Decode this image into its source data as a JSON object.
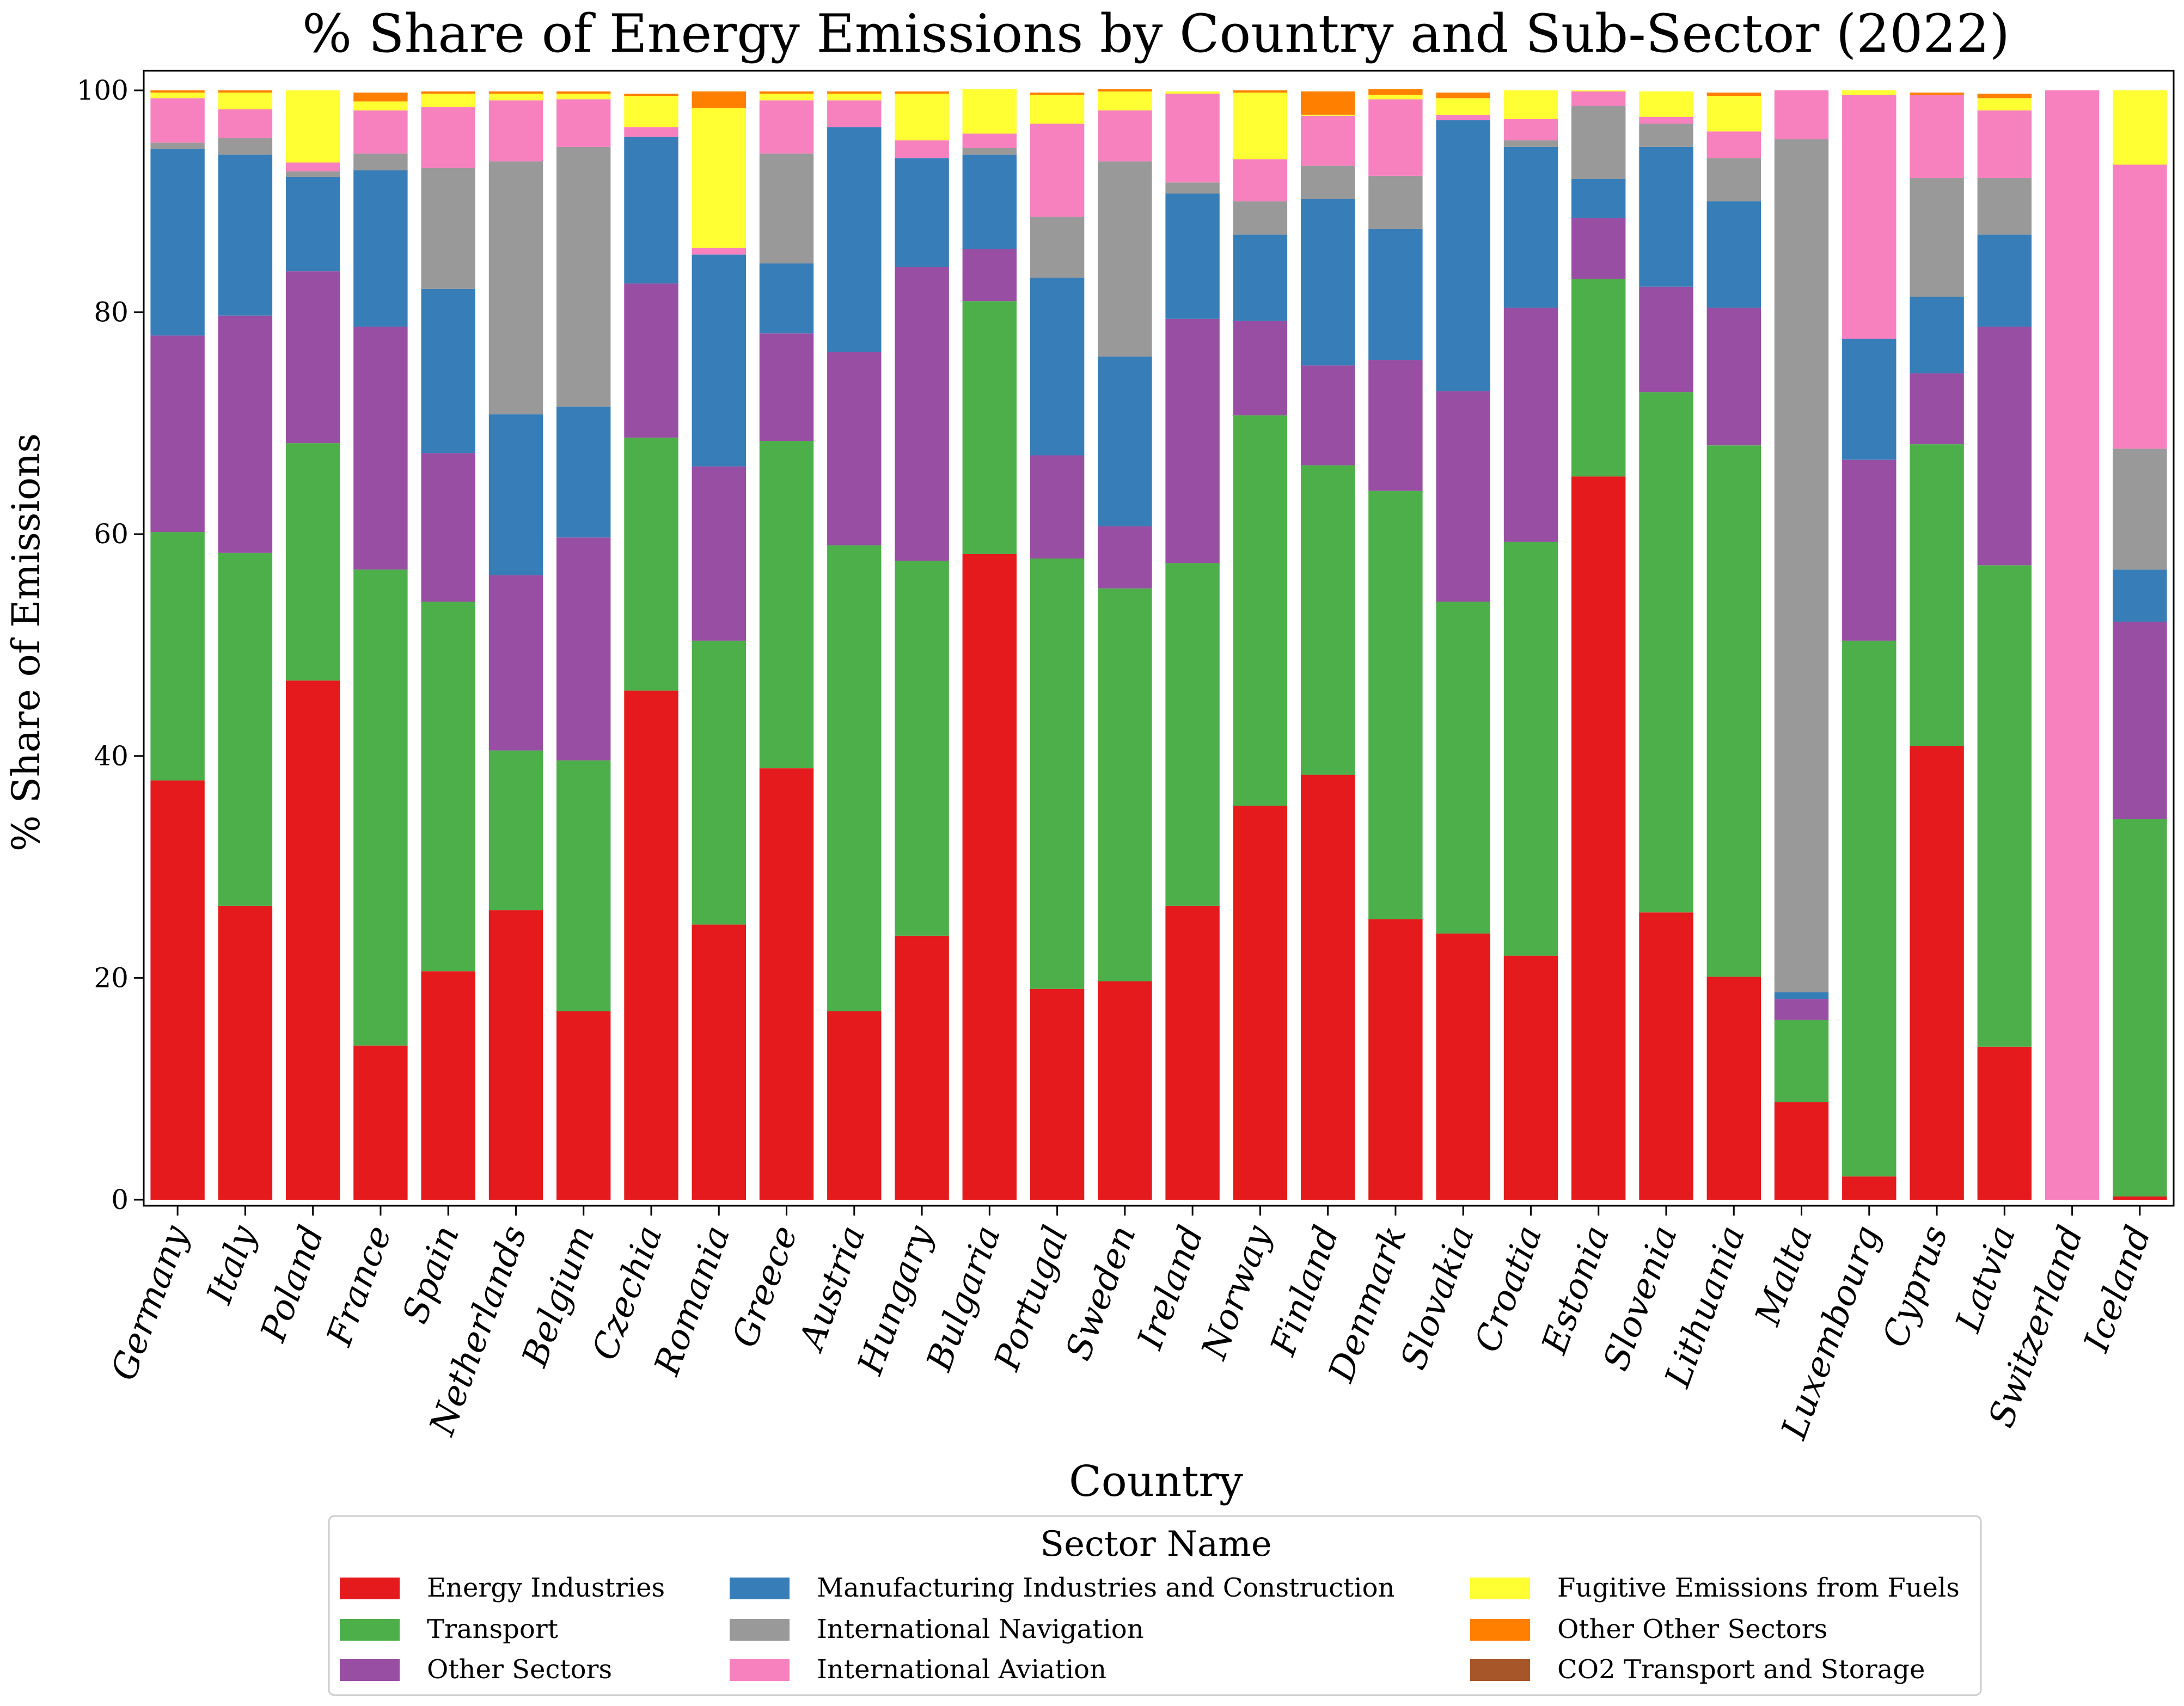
{
  "chart_data": {
    "type": "bar",
    "stacked": true,
    "title": "% Share of Energy Emissions by Country and Sub-Sector (2022)",
    "xlabel": "Country",
    "ylabel": "% Share of Emissions",
    "ylim": [
      0,
      100
    ],
    "yticks": [
      0,
      20,
      40,
      60,
      80,
      100
    ],
    "grid": false,
    "legend_title": "Sector Name",
    "legend_position": "bottom-center",
    "categories": [
      "Germany",
      "Italy",
      "Poland",
      "France",
      "Spain",
      "Netherlands",
      "Belgium",
      "Czechia",
      "Romania",
      "Greece",
      "Austria",
      "Hungary",
      "Bulgaria",
      "Portugal",
      "Sweden",
      "Ireland",
      "Norway",
      "Finland",
      "Denmark",
      "Slovakia",
      "Croatia",
      "Estonia",
      "Slovenia",
      "Lithuania",
      "Malta",
      "Luxembourg",
      "Cyprus",
      "Latvia",
      "Switzerland",
      "Iceland"
    ],
    "series": [
      {
        "name": "Energy Industries",
        "color": "#e41a1c",
        "values": [
          37.8,
          26.5,
          46.8,
          13.9,
          20.6,
          26.1,
          17.0,
          45.9,
          24.8,
          38.9,
          17.0,
          23.8,
          58.2,
          19.0,
          19.7,
          26.5,
          35.5,
          38.3,
          25.3,
          24.0,
          22.0,
          65.2,
          25.9,
          20.1,
          8.8,
          2.1,
          40.9,
          13.8,
          0.0,
          0.3
        ]
      },
      {
        "name": "Transport",
        "color": "#4daf4a",
        "values": [
          22.4,
          31.8,
          21.4,
          42.9,
          33.3,
          14.4,
          22.6,
          22.8,
          25.6,
          29.5,
          42.0,
          33.8,
          22.8,
          38.8,
          35.4,
          30.9,
          35.2,
          27.9,
          38.6,
          29.9,
          37.3,
          17.8,
          46.9,
          47.9,
          7.4,
          48.3,
          27.2,
          43.4,
          0.0,
          34.0
        ]
      },
      {
        "name": "Other Sectors",
        "color": "#984ea3",
        "values": [
          17.7,
          21.4,
          15.5,
          21.9,
          13.4,
          15.8,
          20.1,
          13.9,
          15.7,
          9.7,
          17.4,
          26.5,
          4.7,
          9.3,
          5.6,
          22.0,
          8.5,
          9.0,
          11.8,
          19.0,
          21.1,
          5.5,
          9.5,
          12.4,
          1.9,
          16.3,
          6.4,
          21.5,
          0.0,
          17.8
        ]
      },
      {
        "name": "Manufacturing Industries and Construction",
        "color": "#377eb8",
        "values": [
          16.8,
          14.5,
          8.5,
          14.1,
          14.8,
          14.5,
          11.8,
          13.2,
          19.1,
          6.3,
          20.3,
          9.8,
          8.5,
          16.0,
          15.3,
          11.3,
          7.8,
          15.0,
          11.8,
          24.4,
          14.5,
          3.5,
          12.6,
          9.6,
          0.6,
          10.9,
          6.9,
          8.3,
          0.0,
          4.7
        ]
      },
      {
        "name": "International Navigation",
        "color": "#999999",
        "values": [
          0.6,
          1.5,
          0.5,
          1.5,
          10.9,
          22.8,
          23.4,
          0.0,
          0.0,
          9.9,
          0.0,
          0.0,
          0.6,
          5.5,
          17.6,
          1.0,
          3.0,
          3.0,
          4.8,
          0.0,
          0.6,
          6.6,
          2.1,
          3.9,
          76.9,
          0.0,
          10.7,
          5.1,
          0.0,
          10.9
        ]
      },
      {
        "name": "International Aviation",
        "color": "#f781bf",
        "values": [
          4.0,
          2.6,
          0.8,
          3.9,
          5.5,
          5.5,
          4.3,
          0.9,
          0.6,
          4.8,
          2.4,
          1.6,
          1.3,
          8.4,
          4.6,
          8.0,
          3.8,
          4.5,
          6.9,
          0.5,
          1.9,
          1.3,
          0.6,
          2.4,
          4.4,
          22.0,
          7.5,
          6.1,
          100.0,
          25.6
        ]
      },
      {
        "name": "Fugitive Emissions from Fuels",
        "color": "#ffff33",
        "values": [
          0.5,
          1.5,
          6.5,
          0.8,
          1.2,
          0.6,
          0.5,
          2.8,
          12.6,
          0.6,
          0.6,
          4.2,
          4.0,
          2.6,
          1.7,
          0.2,
          6.0,
          0.1,
          0.4,
          1.5,
          2.6,
          0.1,
          2.3,
          3.2,
          0.0,
          0.4,
          0.0,
          1.1,
          0.0,
          6.7
        ]
      },
      {
        "name": "Other Other Sectors",
        "color": "#ff7f00",
        "values": [
          0.2,
          0.2,
          0.0,
          0.8,
          0.2,
          0.2,
          0.2,
          0.2,
          1.5,
          0.2,
          0.2,
          0.2,
          0.0,
          0.2,
          0.2,
          0.0,
          0.2,
          2.1,
          0.5,
          0.5,
          0.0,
          0.0,
          0.0,
          0.3,
          0.0,
          0.0,
          0.2,
          0.4,
          0.0,
          0.0
        ]
      },
      {
        "name": "CO2 Transport and Storage",
        "color": "#a65628",
        "values": [
          0,
          0,
          0,
          0,
          0,
          0,
          0,
          0,
          0,
          0,
          0,
          0,
          0,
          0,
          0,
          0,
          0,
          0,
          0,
          0,
          0,
          0,
          0,
          0,
          0,
          0,
          0,
          0,
          0,
          0
        ]
      }
    ]
  }
}
